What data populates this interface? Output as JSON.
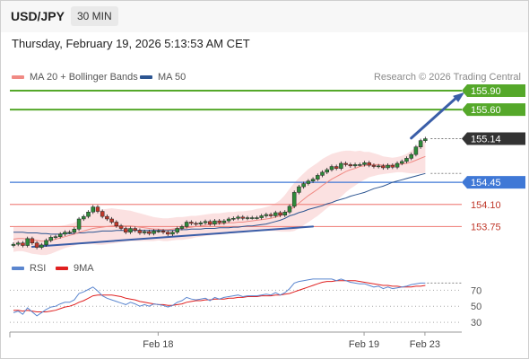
{
  "header": {
    "symbol": "USD/JPY",
    "timeframe": "30 MIN"
  },
  "timestamp": "Thursday, February 19, 2026 5:13:53 AM CET",
  "legend": {
    "price": [
      {
        "name": "MA 20 + Bollinger Bands",
        "color": "#f08a84"
      },
      {
        "name": "MA 50",
        "color": "#2c5591"
      }
    ],
    "rsi": [
      {
        "name": "RSI",
        "color": "#5b86cf"
      },
      {
        "name": "9MA",
        "color": "#e02020"
      }
    ]
  },
  "credit": "Research © 2026 Trading Central",
  "chart_data": {
    "type": "line",
    "price_axis": {
      "min": 153.33,
      "max": 156.0
    },
    "levels": [
      {
        "value": 155.9,
        "label": "155.90",
        "kind": "target",
        "color": "#55a82a"
      },
      {
        "value": 155.6,
        "label": "155.60",
        "kind": "target",
        "color": "#55a82a"
      },
      {
        "value": 155.14,
        "label": "155.14",
        "kind": "last",
        "color": "#333333"
      },
      {
        "value": 154.45,
        "label": "154.45",
        "kind": "pivot",
        "color": "#3f78d6"
      },
      {
        "value": 154.1,
        "label": "154.10",
        "kind": "support",
        "color": "#f08a84"
      },
      {
        "value": 153.75,
        "label": "153.75",
        "kind": "support",
        "color": "#f08a84"
      }
    ],
    "close": [
      153.47,
      153.49,
      153.45,
      153.56,
      153.49,
      153.42,
      153.46,
      153.53,
      153.58,
      153.59,
      153.63,
      153.66,
      153.66,
      153.71,
      153.87,
      153.91,
      153.98,
      154.06,
      153.99,
      153.91,
      153.87,
      153.82,
      153.76,
      153.72,
      153.66,
      153.72,
      153.69,
      153.65,
      153.67,
      153.64,
      153.68,
      153.68,
      153.66,
      153.63,
      153.66,
      153.72,
      153.75,
      153.82,
      153.8,
      153.79,
      153.81,
      153.83,
      153.79,
      153.84,
      153.81,
      153.84,
      153.87,
      153.88,
      153.9,
      153.88,
      153.89,
      153.89,
      153.89,
      153.92,
      153.94,
      153.92,
      153.97,
      153.93,
      153.98,
      154.07,
      154.29,
      154.38,
      154.43,
      154.47,
      154.5,
      154.56,
      154.61,
      154.65,
      154.7,
      154.67,
      154.75,
      154.73,
      154.71,
      154.73,
      154.73,
      154.76,
      154.72,
      154.7,
      154.71,
      154.68,
      154.72,
      154.69,
      154.75,
      154.78,
      154.83,
      154.89,
      155.01,
      155.11,
      155.14
    ],
    "ma50": [
      153.66,
      153.66,
      153.66,
      153.65,
      153.65,
      153.65,
      153.64,
      153.64,
      153.63,
      153.63,
      153.63,
      153.64,
      153.64,
      153.64,
      153.65,
      153.65,
      153.66,
      153.66,
      153.67,
      153.68,
      153.68,
      153.68,
      153.69,
      153.69,
      153.69,
      153.69,
      153.69,
      153.69,
      153.69,
      153.69,
      153.69,
      153.69,
      153.69,
      153.69,
      153.69,
      153.7,
      153.7,
      153.7,
      153.71,
      153.71,
      153.71,
      153.72,
      153.72,
      153.72,
      153.73,
      153.73,
      153.73,
      153.74,
      153.74,
      153.75,
      153.76,
      153.76,
      153.77,
      153.78,
      153.79,
      153.81,
      153.83,
      153.85,
      153.88,
      153.92,
      153.94,
      153.97,
      153.99,
      154.02,
      154.04,
      154.06,
      154.08,
      154.11,
      154.13,
      154.16,
      154.18,
      154.2,
      154.23,
      154.25,
      154.27,
      154.29,
      154.32,
      154.35,
      154.37,
      154.39,
      154.42,
      154.45,
      154.47,
      154.49,
      154.51,
      154.53,
      154.55,
      154.57,
      154.59
    ],
    "ma20": [
      153.55,
      153.56,
      153.56,
      153.55,
      153.54,
      153.53,
      153.52,
      153.52,
      153.53,
      153.55,
      153.57,
      153.59,
      153.61,
      153.63,
      153.66,
      153.68,
      153.7,
      153.72,
      153.73,
      153.74,
      153.75,
      153.76,
      153.76,
      153.76,
      153.76,
      153.76,
      153.75,
      153.74,
      153.73,
      153.72,
      153.71,
      153.71,
      153.7,
      153.7,
      153.71,
      153.72,
      153.72,
      153.73,
      153.74,
      153.75,
      153.76,
      153.77,
      153.78,
      153.79,
      153.79,
      153.8,
      153.81,
      153.81,
      153.82,
      153.82,
      153.83,
      153.84,
      153.85,
      153.86,
      153.87,
      153.88,
      153.9,
      153.92,
      153.96,
      154.01,
      154.06,
      154.12,
      154.18,
      154.24,
      154.29,
      154.34,
      154.4,
      154.45,
      154.5,
      154.54,
      154.58,
      154.62,
      154.65,
      154.67,
      154.7,
      154.71,
      154.73,
      154.73,
      154.73,
      154.72,
      154.72,
      154.72,
      154.73,
      154.74,
      154.75,
      154.77,
      154.8,
      154.83,
      154.86
    ],
    "bb_width": [
      0.2,
      0.2,
      0.2,
      0.21,
      0.22,
      0.22,
      0.22,
      0.22,
      0.21,
      0.2,
      0.19,
      0.18,
      0.18,
      0.18,
      0.19,
      0.21,
      0.23,
      0.25,
      0.27,
      0.28,
      0.28,
      0.28,
      0.27,
      0.26,
      0.25,
      0.24,
      0.23,
      0.22,
      0.21,
      0.2,
      0.19,
      0.18,
      0.18,
      0.18,
      0.18,
      0.18,
      0.18,
      0.18,
      0.18,
      0.17,
      0.17,
      0.17,
      0.17,
      0.17,
      0.17,
      0.17,
      0.17,
      0.17,
      0.17,
      0.17,
      0.17,
      0.17,
      0.18,
      0.18,
      0.19,
      0.2,
      0.22,
      0.25,
      0.29,
      0.34,
      0.38,
      0.4,
      0.41,
      0.42,
      0.42,
      0.42,
      0.42,
      0.41,
      0.4,
      0.38,
      0.36,
      0.33,
      0.3,
      0.27,
      0.25,
      0.22,
      0.2,
      0.18,
      0.16,
      0.14,
      0.13,
      0.12,
      0.12,
      0.13,
      0.15,
      0.18,
      0.21,
      0.24,
      0.26
    ],
    "rsi_axis": {
      "min": 20,
      "max": 85,
      "ticks": [
        70,
        50,
        30
      ]
    },
    "rsi": [
      42,
      44,
      40,
      48,
      43,
      38,
      42,
      46,
      49,
      50,
      53,
      55,
      55,
      58,
      66,
      68,
      71,
      74,
      69,
      63,
      60,
      58,
      56,
      54,
      52,
      55,
      53,
      50,
      52,
      50,
      53,
      52,
      51,
      49,
      51,
      55,
      57,
      61,
      59,
      58,
      59,
      60,
      57,
      61,
      59,
      61,
      62,
      63,
      64,
      62,
      63,
      63,
      63,
      64,
      65,
      64,
      67,
      64,
      67,
      72,
      79,
      81,
      82,
      83,
      84,
      84,
      84,
      84,
      84,
      82,
      84,
      82,
      80,
      79,
      78,
      78,
      76,
      74,
      75,
      72,
      74,
      72,
      73,
      74,
      75,
      77,
      78,
      79,
      79
    ],
    "rsi_ma9": [
      45,
      45,
      44,
      45,
      44,
      43,
      43,
      43,
      44,
      45,
      47,
      49,
      50,
      52,
      55,
      57,
      60,
      63,
      64,
      64,
      64,
      64,
      63,
      62,
      60,
      59,
      58,
      56,
      55,
      54,
      53,
      52,
      52,
      51,
      51,
      52,
      53,
      55,
      56,
      57,
      57,
      58,
      58,
      59,
      59,
      59,
      60,
      60,
      61,
      61,
      62,
      62,
      62,
      63,
      63,
      63,
      64,
      64,
      65,
      66,
      68,
      70,
      72,
      74,
      76,
      78,
      80,
      81,
      81,
      82,
      82,
      82,
      82,
      82,
      81,
      80,
      79,
      78,
      77,
      76,
      76,
      75,
      75,
      74,
      74,
      74,
      75,
      75,
      76
    ],
    "rsi_end_marker": 79,
    "x_labels": [
      {
        "index": 29,
        "label": "Feb 18"
      },
      {
        "index": 73,
        "label": "Feb 19"
      },
      {
        "index": 86,
        "label": "Feb 23"
      }
    ],
    "trendlines": [
      {
        "from": [
          4,
          153.43
        ],
        "to": [
          64,
          153.75
        ]
      },
      {
        "from": [
          85,
          155.15
        ],
        "to": [
          96,
          155.86
        ]
      }
    ]
  }
}
